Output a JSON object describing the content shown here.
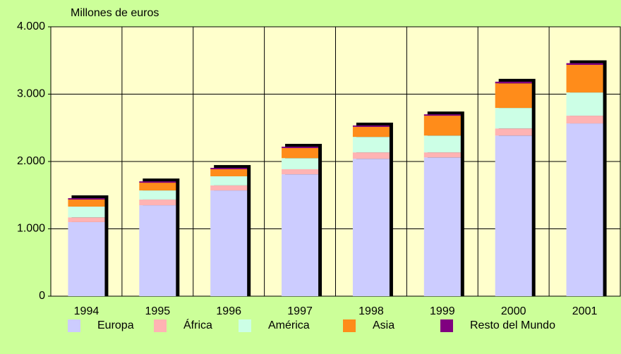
{
  "chart_data": {
    "type": "stacked_bar",
    "y_axis_label": "Millones de euros",
    "categories": [
      "1994",
      "1995",
      "1996",
      "1997",
      "1998",
      "1999",
      "2000",
      "2001"
    ],
    "series": [
      {
        "name": "Europa",
        "color": "#ccccff",
        "values": [
          1100,
          1350,
          1570,
          1810,
          2040,
          2060,
          2385,
          2565
        ]
      },
      {
        "name": "África",
        "color": "#ffb3b3",
        "values": [
          70,
          85,
          75,
          75,
          95,
          75,
          105,
          115
        ]
      },
      {
        "name": "América",
        "color": "#ccffe6",
        "values": [
          160,
          135,
          135,
          165,
          230,
          250,
          305,
          345
        ]
      },
      {
        "name": "Asia",
        "color": "#ff8c1a",
        "values": [
          105,
          115,
          105,
          150,
          150,
          295,
          365,
          410
        ]
      },
      {
        "name": "Resto del Mundo",
        "color": "#800080",
        "values": [
          20,
          20,
          20,
          20,
          20,
          20,
          25,
          25
        ]
      }
    ],
    "ylim": [
      0,
      4000
    ],
    "yticks": [
      0,
      {
        "value": 1000,
        "label": "1.000"
      },
      {
        "value": 2000,
        "label": "2.000"
      },
      {
        "value": 3000,
        "label": "3.000"
      },
      {
        "value": 4000,
        "label": "4.000"
      }
    ],
    "grid": true,
    "legend": "bottom",
    "plot_background": "#ffffcc"
  }
}
